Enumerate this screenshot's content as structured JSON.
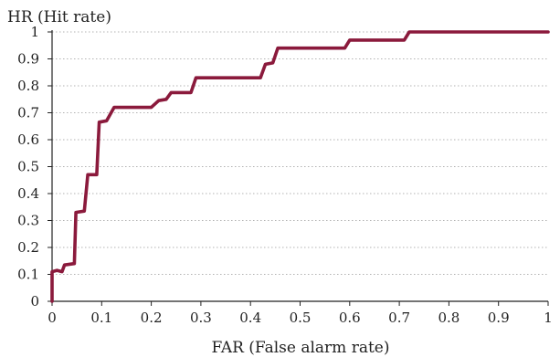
{
  "chart_data": {
    "type": "line",
    "title": "",
    "ylabel": "HR (Hit rate)",
    "xlabel": "FAR (False alarm rate)",
    "xlim": [
      0,
      1
    ],
    "ylim": [
      0,
      1
    ],
    "x_ticks": [
      "0",
      "0.1",
      "0.2",
      "0.3",
      "0.4",
      "0.5",
      "0.6",
      "0.7",
      "0.8",
      "0.9",
      "1"
    ],
    "y_ticks": [
      "0",
      "0.1",
      "0.2",
      "0.3",
      "0.4",
      "0.5",
      "0.6",
      "0.7",
      "0.8",
      "0.9",
      "1"
    ],
    "grid": true,
    "line_color": "#8b1a3c",
    "series": [
      {
        "x": [
          0,
          0.0,
          0.01,
          0.02,
          0.025,
          0.045,
          0.048,
          0.065,
          0.072,
          0.09,
          0.095,
          0.11,
          0.125,
          0.2,
          0.215,
          0.23,
          0.24,
          0.28,
          0.29,
          0.42,
          0.43,
          0.445,
          0.455,
          0.59,
          0.6,
          0.71,
          0.72,
          0.85,
          1.0
        ],
        "y": [
          0,
          0.11,
          0.115,
          0.11,
          0.135,
          0.14,
          0.33,
          0.335,
          0.47,
          0.47,
          0.665,
          0.67,
          0.72,
          0.72,
          0.745,
          0.75,
          0.775,
          0.775,
          0.83,
          0.83,
          0.88,
          0.885,
          0.94,
          0.94,
          0.97,
          0.97,
          1.0,
          1.0,
          1.0
        ]
      }
    ]
  }
}
